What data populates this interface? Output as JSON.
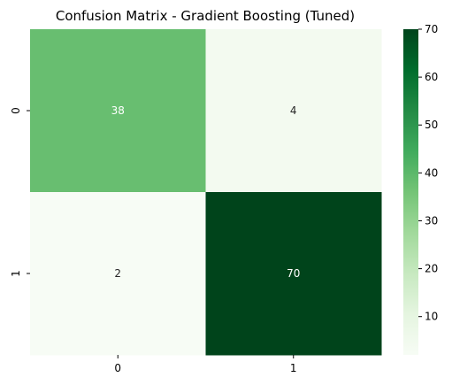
{
  "chart_data": {
    "type": "heatmap",
    "title": "Confusion Matrix - Gradient Boosting (Tuned)",
    "xlabel": "",
    "ylabel": "",
    "x_categories": [
      "0",
      "1"
    ],
    "y_categories": [
      "0",
      "1"
    ],
    "values": [
      [
        38,
        4
      ],
      [
        2,
        70
      ]
    ],
    "colormap": "Greens",
    "colorbar": {
      "range": [
        2,
        70
      ],
      "ticks": [
        10,
        20,
        30,
        40,
        50,
        60,
        70
      ]
    },
    "annotation_colors": {
      "dark_text": "#262626",
      "light_text": "#ffffff"
    }
  }
}
